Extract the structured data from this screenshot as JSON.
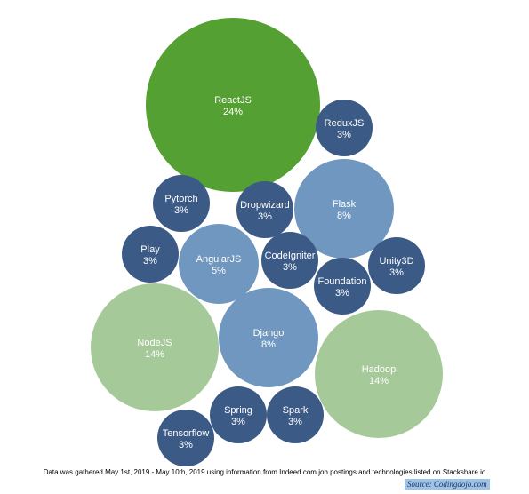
{
  "chart_data": {
    "type": "bubble",
    "title": "",
    "colors": {
      "light_green": "#a6c99a",
      "dark_green": "#55a032",
      "light_blue": "#6f97bf",
      "dark_blue": "#3b5a86",
      "label": "#ffffff"
    },
    "bubbles": [
      {
        "name": "ReactJS",
        "value": 24,
        "label": "24%",
        "color": "dark_green"
      },
      {
        "name": "ReduxJS",
        "value": 3,
        "label": "3%",
        "color": "dark_blue"
      },
      {
        "name": "Pytorch",
        "value": 3,
        "label": "3%",
        "color": "dark_blue"
      },
      {
        "name": "Dropwizard",
        "value": 3,
        "label": "3%",
        "color": "dark_blue"
      },
      {
        "name": "Flask",
        "value": 8,
        "label": "8%",
        "color": "light_blue"
      },
      {
        "name": "Play",
        "value": 3,
        "label": "3%",
        "color": "dark_blue"
      },
      {
        "name": "AngularJS",
        "value": 5,
        "label": "5%",
        "color": "light_blue"
      },
      {
        "name": "CodeIgniter",
        "value": 3,
        "label": "3%",
        "color": "dark_blue"
      },
      {
        "name": "Unity3D",
        "value": 3,
        "label": "3%",
        "color": "dark_blue"
      },
      {
        "name": "Foundation",
        "value": 3,
        "label": "3%",
        "color": "dark_blue"
      },
      {
        "name": "NodeJS",
        "value": 14,
        "label": "14%",
        "color": "light_green"
      },
      {
        "name": "Django",
        "value": 8,
        "label": "8%",
        "color": "light_blue"
      },
      {
        "name": "Hadoop",
        "value": 14,
        "label": "14%",
        "color": "light_green"
      },
      {
        "name": "Spring",
        "value": 3,
        "label": "3%",
        "color": "dark_blue"
      },
      {
        "name": "Spark",
        "value": 3,
        "label": "3%",
        "color": "dark_blue"
      },
      {
        "name": "Tensorflow",
        "value": 3,
        "label": "3%",
        "color": "dark_blue"
      }
    ]
  },
  "footnote": "Data was gathered May 1st, 2019 - May 10th, 2019 using information from Indeed.com job postings and technologies listed on Stackshare.io",
  "source": "Source: Codingdojo.com"
}
